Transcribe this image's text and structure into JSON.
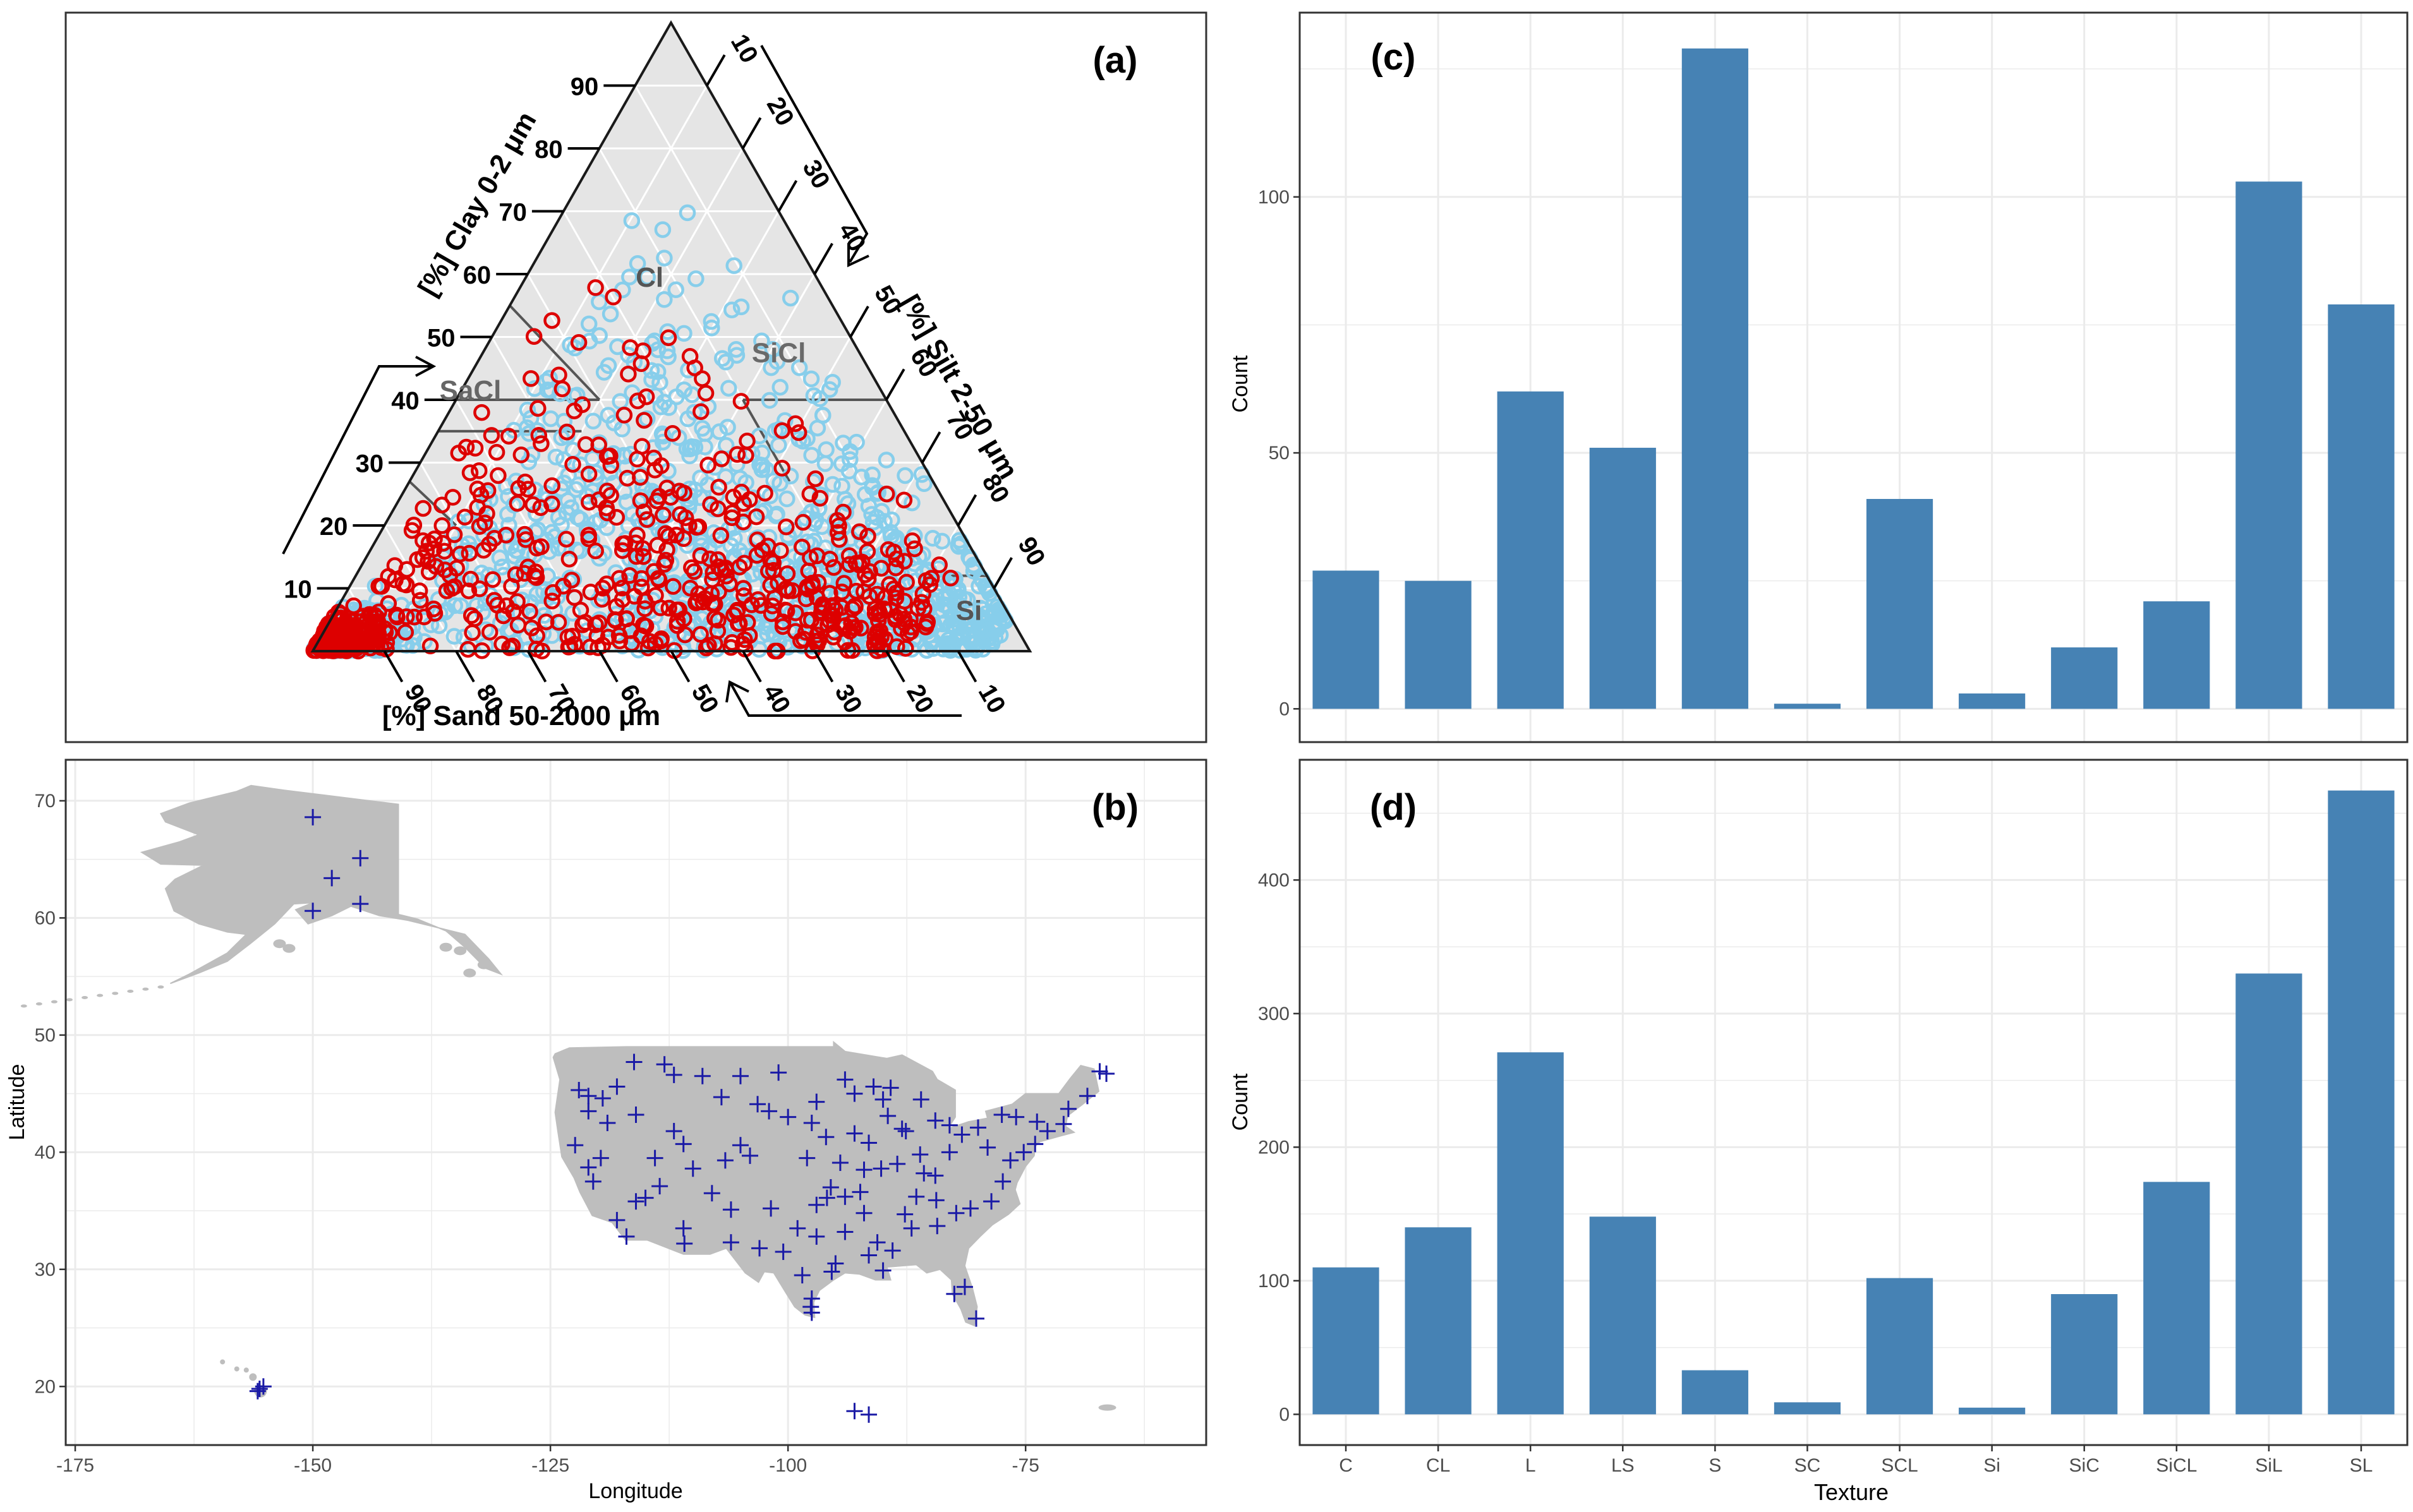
{
  "panels": {
    "a": {
      "label": "(a)"
    },
    "b": {
      "label": "(b)"
    },
    "c": {
      "label": "(c)"
    },
    "d": {
      "label": "(d)"
    }
  },
  "colors": {
    "bar": "#4682b4",
    "grid": "#ebebeb",
    "map_land": "#bebebe",
    "site_marker": "#1a1aa6",
    "ternary_bg": "#e5e5e5",
    "point_red": "#dd0000",
    "point_blue": "#87ceeb"
  },
  "chart_data": [
    {
      "id": "a",
      "type": "scatter",
      "subtype": "ternary",
      "clay_axis_label": "[%] Clay 0-2 μm",
      "silt_axis_label": "[%] Silt 2-50 μm",
      "sand_axis_label": "[%] Sand 50-2000 μm",
      "ticks": [
        "10",
        "20",
        "30",
        "40",
        "50",
        "60",
        "70",
        "80",
        "90"
      ],
      "region_labels": [
        "Cl",
        "SaCl",
        "SiCl",
        "Si"
      ],
      "series": [
        {
          "name": "",
          "color": "#87ceeb",
          "count": 1180
        },
        {
          "name": "",
          "color": "#dd0000",
          "count": 720
        }
      ]
    },
    {
      "id": "b",
      "type": "scatter",
      "subtype": "map",
      "xlabel": "Longitude",
      "ylabel": "Latitude",
      "xlim": [
        -176,
        -56
      ],
      "ylim": [
        15,
        73.5
      ],
      "x_ticks": [
        "-175",
        "-150",
        "-125",
        "-100",
        "-75"
      ],
      "x_tick_values": [
        -175,
        -150,
        -125,
        -100,
        -75
      ],
      "y_ticks": [
        "20",
        "30",
        "40",
        "50",
        "60",
        "70"
      ],
      "y_tick_values": [
        20,
        30,
        40,
        50,
        60,
        70
      ],
      "sites": [
        [
          -150,
          68.6
        ],
        [
          -145,
          65.1
        ],
        [
          -148,
          63.4
        ],
        [
          -150,
          60.6
        ],
        [
          -145,
          61.2
        ],
        [
          -155.6,
          19.8
        ],
        [
          -155.2,
          20.0
        ],
        [
          -155.8,
          19.6
        ],
        [
          -93,
          17.9
        ],
        [
          -91.5,
          17.6
        ],
        [
          -122,
          45.3
        ],
        [
          -121,
          44.8
        ],
        [
          -119.5,
          44.6
        ],
        [
          -118,
          45.6
        ],
        [
          -121,
          43.5
        ],
        [
          -116,
          43.2
        ],
        [
          -119,
          42.5
        ],
        [
          -121,
          38.7
        ],
        [
          -120.5,
          37.5
        ],
        [
          -118,
          34.2
        ],
        [
          -117,
          32.8
        ],
        [
          -116,
          35.8
        ],
        [
          -111,
          40.7
        ],
        [
          -112,
          41.8
        ],
        [
          -114,
          39.5
        ],
        [
          -110,
          38.6
        ],
        [
          -106,
          35.1
        ],
        [
          -108,
          36.5
        ],
        [
          -111,
          33.5
        ],
        [
          -106,
          32.3
        ],
        [
          -104,
          39.7
        ],
        [
          -105,
          40.6
        ],
        [
          -107,
          44.7
        ],
        [
          -105,
          46.5
        ],
        [
          -109,
          46.5
        ],
        [
          -113,
          47.5
        ],
        [
          -101,
          46.8
        ],
        [
          -97,
          44.3
        ],
        [
          -96,
          41.3
        ],
        [
          -98,
          39.5
        ],
        [
          -97,
          35.5
        ],
        [
          -99,
          33.5
        ],
        [
          -97,
          32.8
        ],
        [
          -98.5,
          29.5
        ],
        [
          -97.5,
          27.5
        ],
        [
          -97.5,
          26.3
        ],
        [
          -97.6,
          26.8
        ],
        [
          -95,
          30.5
        ],
        [
          -94,
          33.2
        ],
        [
          -92,
          34.8
        ],
        [
          -91.5,
          31.2
        ],
        [
          -90,
          29.9
        ],
        [
          -89,
          31.6
        ],
        [
          -93,
          45
        ],
        [
          -94,
          46.2
        ],
        [
          -90,
          44.5
        ],
        [
          -91,
          45.6
        ],
        [
          -89.5,
          43.1
        ],
        [
          -89.2,
          45.5
        ],
        [
          -88,
          42
        ],
        [
          -86,
          44.5
        ],
        [
          -84.5,
          42.7
        ],
        [
          -87.6,
          41.8
        ],
        [
          -86.1,
          39.8
        ],
        [
          -83,
          40
        ],
        [
          -84.5,
          38
        ],
        [
          -85.7,
          38.2
        ],
        [
          -86.5,
          36.2
        ],
        [
          -84.3,
          33.7
        ],
        [
          -87,
          33.5
        ],
        [
          -82.5,
          27.9
        ],
        [
          -81.4,
          28.5
        ],
        [
          -80.2,
          25.8
        ],
        [
          -80.8,
          35.2
        ],
        [
          -78.6,
          35.8
        ],
        [
          -77.4,
          37.5
        ],
        [
          -79,
          40.4
        ],
        [
          -75.2,
          40
        ],
        [
          -74,
          40.7
        ],
        [
          -76.6,
          39.3
        ],
        [
          -73.8,
          42.6
        ],
        [
          -72.7,
          41.8
        ],
        [
          -71,
          42.4
        ],
        [
          -70.5,
          43.7
        ],
        [
          -68.5,
          44.8
        ],
        [
          -67.2,
          46.9
        ],
        [
          -66.5,
          46.7
        ],
        [
          -76,
          43
        ],
        [
          -77.5,
          43.2
        ],
        [
          -83,
          42.3
        ],
        [
          -81.7,
          41.5
        ],
        [
          -80,
          42.1
        ],
        [
          -97.5,
          42.5
        ],
        [
          -100,
          43
        ],
        [
          -102,
          43.5
        ],
        [
          -95.5,
          37
        ],
        [
          -94.5,
          39.1
        ],
        [
          -93,
          41.6
        ],
        [
          -92,
          38.5
        ],
        [
          -90.2,
          38.6
        ],
        [
          -88.5,
          39
        ],
        [
          -94,
          36.2
        ],
        [
          -95.9,
          36.1
        ],
        [
          -100.5,
          31.5
        ],
        [
          -101.8,
          35.2
        ],
        [
          -103,
          31.8
        ],
        [
          -95.4,
          29.8
        ],
        [
          -113.5,
          37.1
        ],
        [
          -112,
          46.6
        ],
        [
          -115,
          36.1
        ],
        [
          -110.9,
          32.2
        ],
        [
          -103.2,
          44.1
        ],
        [
          -106.6,
          39.3
        ],
        [
          -82.3,
          34.8
        ],
        [
          -84.4,
          35.9
        ],
        [
          -87.7,
          34.7
        ],
        [
          -90.6,
          32.3
        ],
        [
          -92.4,
          36.6
        ],
        [
          -91.5,
          40.8
        ],
        [
          -116.2,
          47.7
        ],
        [
          -119.7,
          39.5
        ],
        [
          -122.4,
          40.6
        ]
      ]
    },
    {
      "id": "c",
      "type": "bar",
      "categories": [
        "C",
        "CL",
        "L",
        "LS",
        "S",
        "SC",
        "SCL",
        "Si",
        "SiC",
        "SiCL",
        "SiL",
        "SL"
      ],
      "values": [
        27,
        25,
        62,
        51,
        129,
        1,
        41,
        3,
        12,
        21,
        103,
        79
      ],
      "ylabel": "Count",
      "ylim": [
        -6.5,
        136
      ],
      "y_ticks": [
        "0",
        "50",
        "100"
      ],
      "y_tick_values": [
        0,
        50,
        100
      ]
    },
    {
      "id": "d",
      "type": "bar",
      "categories": [
        "C",
        "CL",
        "L",
        "LS",
        "S",
        "SC",
        "SCL",
        "Si",
        "SiC",
        "SiCL",
        "SiL",
        "SL"
      ],
      "values": [
        110,
        140,
        271,
        148,
        33,
        9,
        102,
        5,
        90,
        174,
        330,
        467
      ],
      "xlabel": "Texture",
      "ylabel": "Count",
      "ylim": [
        -23,
        490
      ],
      "y_ticks": [
        "0",
        "100",
        "200",
        "300",
        "400"
      ],
      "y_tick_values": [
        0,
        100,
        200,
        300,
        400
      ]
    }
  ]
}
